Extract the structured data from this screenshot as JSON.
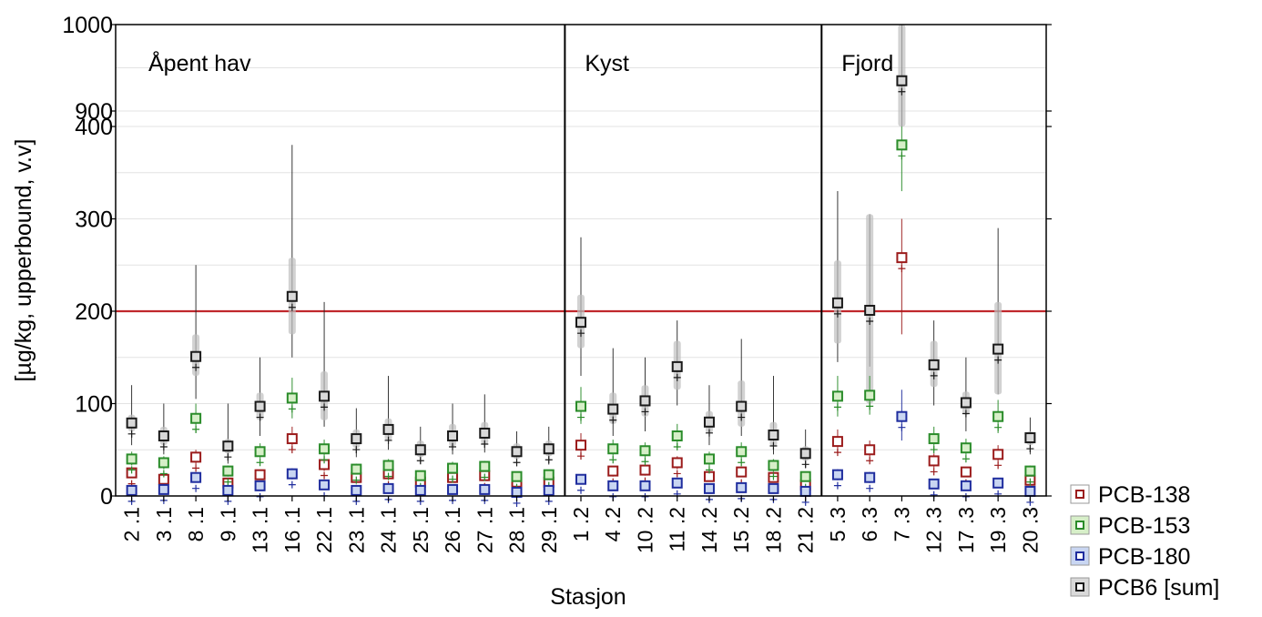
{
  "chart_data": {
    "type": "scatter",
    "subtype": "box-whisker by station, broken y-axis",
    "xlabel": "Stasjon",
    "ylabel": "[µg/kg, upperbound, v.v]",
    "y_axis": {
      "segments": [
        {
          "range": [
            0,
            400
          ],
          "ticks": [
            0,
            100,
            200,
            300,
            400
          ]
        },
        {
          "range": [
            900,
            1000
          ],
          "ticks": [
            900,
            1000
          ]
        }
      ],
      "grid": true
    },
    "reference_line": {
      "value": 200,
      "color": "#c0282d"
    },
    "regions": [
      {
        "label": "Åpent hav",
        "first": 0,
        "last": 13
      },
      {
        "label": "Kyst",
        "first": 14,
        "last": 21
      },
      {
        "label": "Fjord",
        "first": 22,
        "last": 28
      }
    ],
    "categories": [
      "2 .1",
      "3 .1",
      "8 .1",
      "9 .1",
      "13 .1",
      "16 .1",
      "22 .1",
      "23 .1",
      "24 .1",
      "25 .1",
      "26 .1",
      "27 .1",
      "28 .1",
      "29 .1",
      "1 .2",
      "4 .2",
      "10 .2",
      "11 .2",
      "14 .2",
      "15 .2",
      "18 .2",
      "21 .2",
      "5 .3",
      "6 .3",
      "7 .3",
      "12 .3",
      "17 .3",
      "19 .3",
      "20 .3"
    ],
    "legend": {
      "placement": "bottom-right"
    },
    "series": [
      {
        "name": "PCB-138",
        "color": "#9b1b1b",
        "fill": "#ffffff",
        "values": [
          25,
          18,
          42,
          14,
          23,
          62,
          34,
          20,
          24,
          15,
          20,
          22,
          15,
          15,
          55,
          27,
          28,
          36,
          21,
          26,
          20,
          12,
          59,
          50,
          258,
          38,
          26,
          45,
          17
        ],
        "upper": [
          30,
          22,
          50,
          17,
          28,
          75,
          40,
          24,
          29,
          19,
          25,
          27,
          19,
          19,
          68,
          32,
          33,
          43,
          26,
          32,
          25,
          15,
          72,
          60,
          300,
          46,
          31,
          55,
          21
        ],
        "lower": [
          20,
          14,
          34,
          11,
          18,
          50,
          27,
          16,
          19,
          11,
          16,
          18,
          11,
          11,
          42,
          21,
          22,
          29,
          17,
          21,
          16,
          9,
          46,
          40,
          175,
          30,
          21,
          36,
          13
        ]
      },
      {
        "name": "PCB-153",
        "color": "#2a8c2a",
        "fill": "#d6efc8",
        "values": [
          40,
          36,
          84,
          27,
          48,
          106,
          51,
          29,
          33,
          22,
          30,
          32,
          21,
          23,
          97,
          51,
          49,
          65,
          40,
          48,
          33,
          21,
          108,
          109,
          380,
          62,
          52,
          86,
          27
        ],
        "upper": [
          48,
          43,
          100,
          33,
          57,
          128,
          61,
          35,
          40,
          27,
          37,
          38,
          26,
          28,
          118,
          61,
          58,
          78,
          48,
          58,
          40,
          26,
          130,
          130,
          400,
          75,
          62,
          104,
          33
        ],
        "lower": [
          33,
          29,
          68,
          21,
          39,
          84,
          41,
          23,
          26,
          17,
          24,
          26,
          16,
          18,
          78,
          41,
          40,
          52,
          32,
          38,
          26,
          16,
          86,
          88,
          330,
          49,
          42,
          68,
          21
        ]
      },
      {
        "name": "PCB-180",
        "color": "#1f2d9e",
        "fill": "#c9d6f2",
        "values": [
          6,
          7,
          20,
          6,
          11,
          24,
          12,
          6,
          8,
          6,
          7,
          7,
          4,
          6,
          18,
          11,
          11,
          14,
          8,
          9,
          8,
          5,
          23,
          20,
          86,
          13,
          11,
          14,
          5
        ],
        "upper": [
          8,
          9,
          25,
          8,
          14,
          30,
          15,
          8,
          10,
          8,
          9,
          9,
          6,
          8,
          23,
          14,
          14,
          18,
          10,
          12,
          10,
          7,
          29,
          26,
          115,
          17,
          14,
          18,
          7
        ],
        "lower": [
          4,
          5,
          15,
          4,
          8,
          18,
          9,
          4,
          6,
          4,
          5,
          5,
          2,
          4,
          13,
          8,
          8,
          10,
          6,
          6,
          6,
          3,
          17,
          14,
          60,
          9,
          8,
          10,
          3
        ]
      },
      {
        "name": "PCB6 [sum]",
        "color": "#1a1a1a",
        "fill": "#d9d9d9",
        "values": [
          79,
          65,
          151,
          54,
          97,
          216,
          108,
          62,
          72,
          50,
          65,
          68,
          48,
          51,
          188,
          94,
          103,
          140,
          80,
          97,
          66,
          46,
          209,
          201,
          935,
          142,
          101,
          159,
          63
        ],
        "upper": [
          120,
          100,
          250,
          100,
          150,
          380,
          210,
          95,
          130,
          75,
          100,
          110,
          70,
          75,
          280,
          160,
          150,
          190,
          120,
          170,
          130,
          72,
          330,
          305,
          1000,
          190,
          150,
          290,
          85
        ],
        "lower": [
          55,
          45,
          105,
          35,
          65,
          150,
          75,
          42,
          50,
          35,
          45,
          47,
          32,
          34,
          130,
          65,
          70,
          98,
          55,
          65,
          45,
          30,
          145,
          140,
          700,
          98,
          70,
          110,
          45
        ],
        "box_upper": [
          88,
          75,
          175,
          62,
          112,
          258,
          135,
          72,
          84,
          60,
          78,
          80,
          57,
          60,
          218,
          112,
          120,
          168,
          92,
          125,
          80,
          54,
          255,
          305,
          1000,
          168,
          113,
          210,
          70
        ],
        "box_lower": [
          70,
          55,
          130,
          46,
          82,
          175,
          82,
          52,
          60,
          42,
          54,
          56,
          40,
          43,
          160,
          78,
          86,
          115,
          68,
          75,
          54,
          38,
          165,
          100,
          870,
          118,
          88,
          110,
          55
        ]
      }
    ]
  }
}
